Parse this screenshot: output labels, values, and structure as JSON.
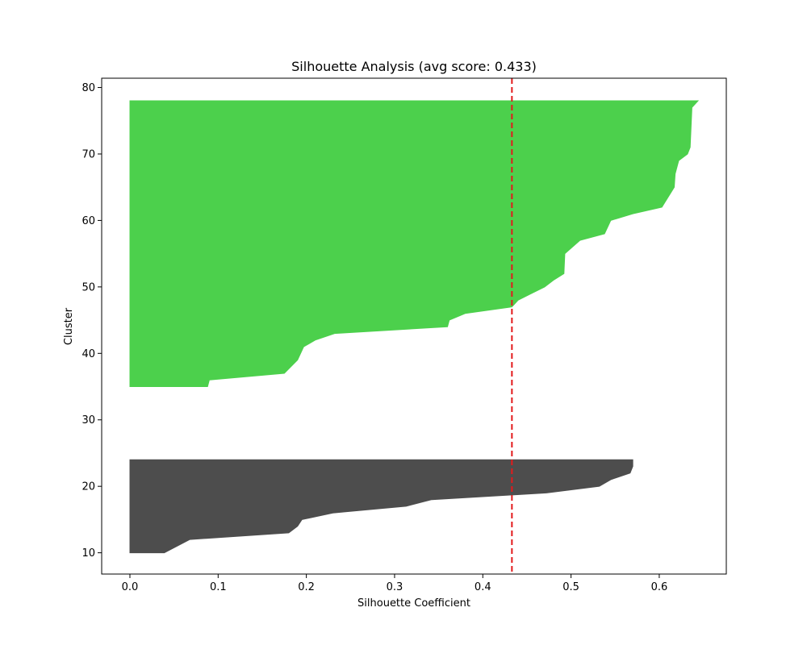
{
  "chart_data": {
    "type": "area",
    "title": "Silhouette Analysis (avg score: 0.433)",
    "xlabel": "Silhouette Coefficient",
    "ylabel": "Cluster",
    "xlim": [
      -0.032,
      0.676
    ],
    "ylim": [
      6.8,
      81.4
    ],
    "xticks": [
      0.0,
      0.1,
      0.2,
      0.3,
      0.4,
      0.5,
      0.6
    ],
    "xtick_labels": [
      "0.0",
      "0.1",
      "0.2",
      "0.3",
      "0.4",
      "0.5",
      "0.6"
    ],
    "yticks": [
      10,
      20,
      30,
      40,
      50,
      60,
      70,
      80
    ],
    "ytick_labels": [
      "10",
      "20",
      "30",
      "40",
      "50",
      "60",
      "70",
      "80"
    ],
    "grid": false,
    "avg_score_line": {
      "x": 0.433,
      "color": "#e31a1c",
      "style": "dashed"
    },
    "series": [
      {
        "cluster": 0,
        "color": "#4d4d4d",
        "points": [
          [
            0.0,
            10
          ],
          [
            0.039,
            10
          ],
          [
            0.068,
            12
          ],
          [
            0.18,
            13
          ],
          [
            0.19,
            14
          ],
          [
            0.195,
            15
          ],
          [
            0.23,
            16
          ],
          [
            0.313,
            17
          ],
          [
            0.342,
            18
          ],
          [
            0.472,
            19
          ],
          [
            0.532,
            20
          ],
          [
            0.545,
            21
          ],
          [
            0.567,
            22
          ],
          [
            0.57,
            23
          ],
          [
            0.57,
            24
          ],
          [
            0.0,
            24
          ]
        ]
      },
      {
        "cluster": 1,
        "color": "#4cd04c",
        "points": [
          [
            0.0,
            35
          ],
          [
            0.088,
            35
          ],
          [
            0.09,
            36
          ],
          [
            0.175,
            37
          ],
          [
            0.19,
            39
          ],
          [
            0.197,
            41
          ],
          [
            0.21,
            42
          ],
          [
            0.232,
            43
          ],
          [
            0.36,
            44
          ],
          [
            0.362,
            45
          ],
          [
            0.38,
            46
          ],
          [
            0.433,
            47
          ],
          [
            0.44,
            48
          ],
          [
            0.455,
            49
          ],
          [
            0.47,
            50
          ],
          [
            0.48,
            51
          ],
          [
            0.492,
            52
          ],
          [
            0.493,
            55
          ],
          [
            0.51,
            57
          ],
          [
            0.538,
            58
          ],
          [
            0.545,
            60
          ],
          [
            0.57,
            61
          ],
          [
            0.603,
            62
          ],
          [
            0.617,
            65
          ],
          [
            0.618,
            67
          ],
          [
            0.622,
            69
          ],
          [
            0.632,
            70
          ],
          [
            0.635,
            71
          ],
          [
            0.637,
            77
          ],
          [
            0.644,
            78
          ],
          [
            0.0,
            78
          ]
        ]
      }
    ]
  }
}
